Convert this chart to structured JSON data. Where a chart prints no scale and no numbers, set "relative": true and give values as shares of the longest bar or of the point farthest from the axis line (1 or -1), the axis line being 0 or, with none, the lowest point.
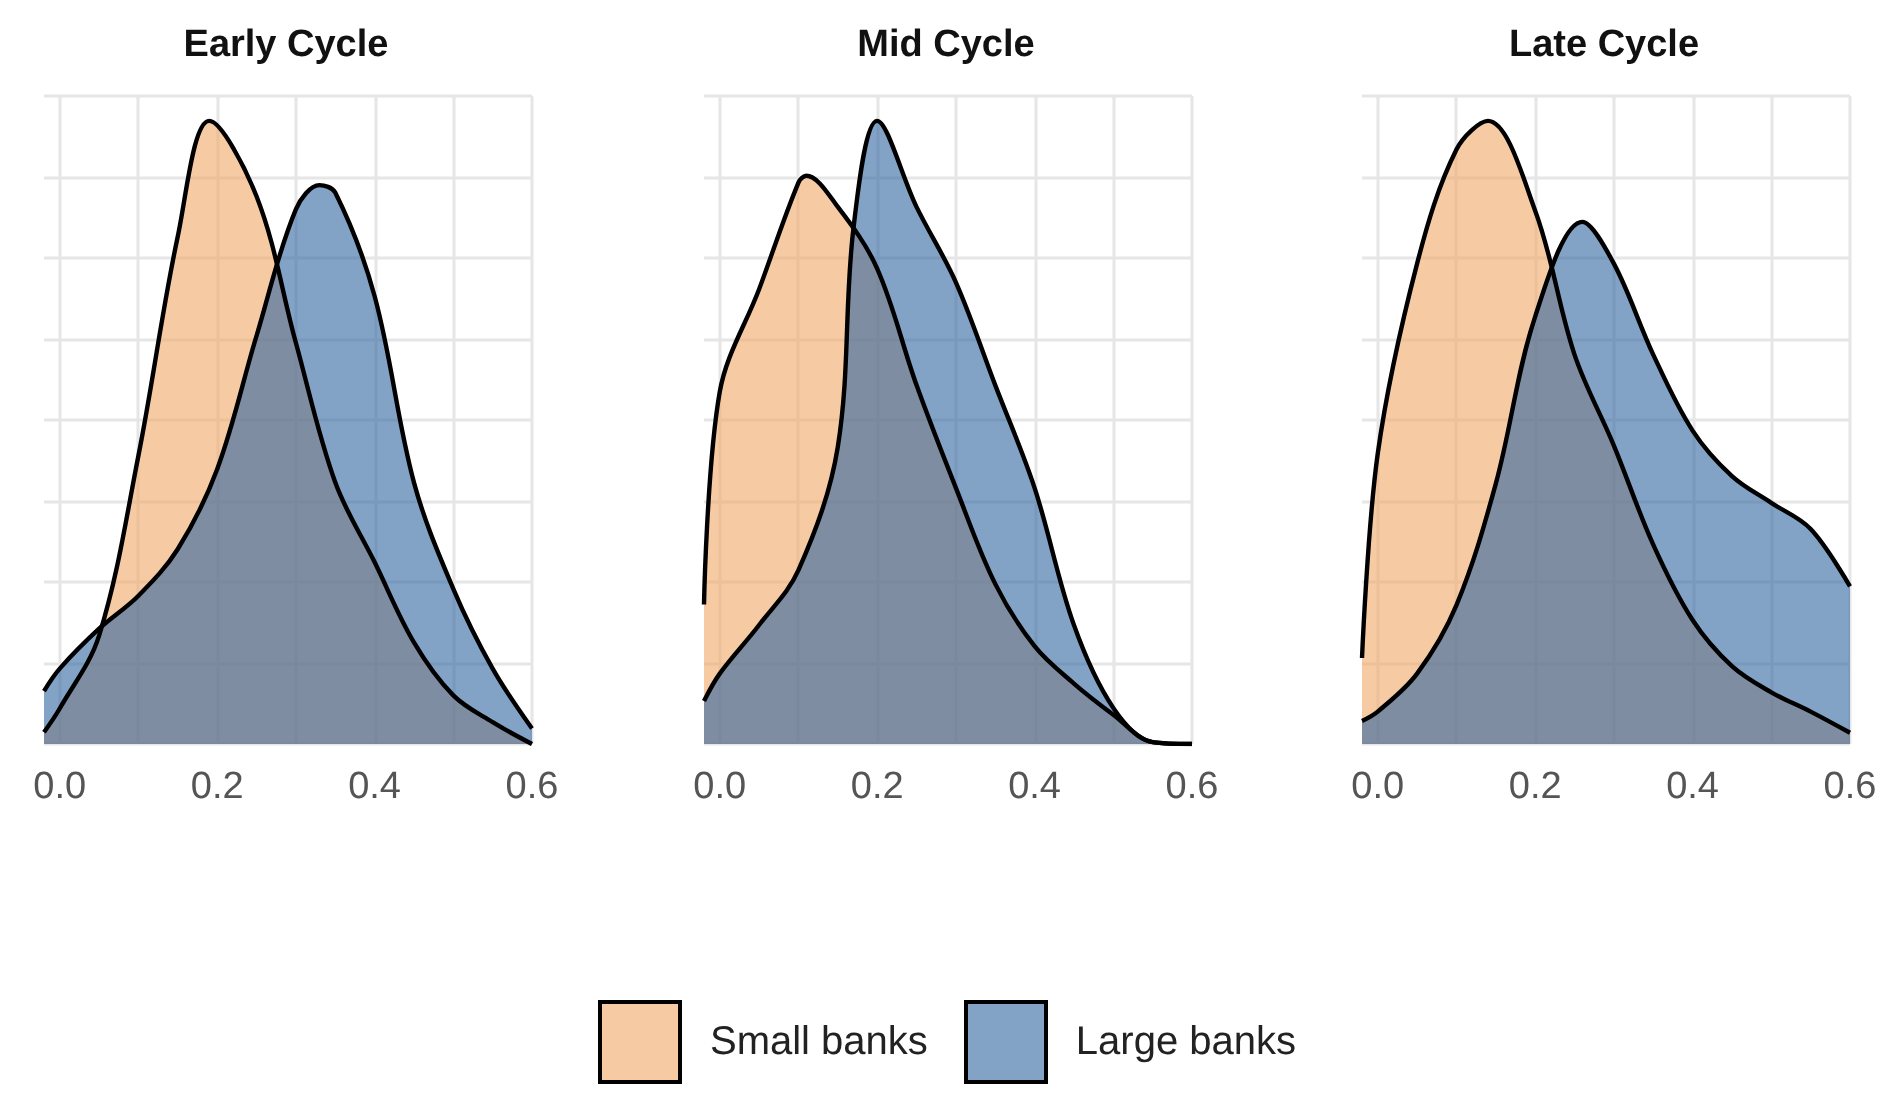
{
  "chart_data": [
    {
      "type": "area",
      "title": "Early Cycle",
      "relative": true,
      "grid": true,
      "legend": "bottom",
      "marker": "none",
      "xlim": [
        -0.02,
        0.6
      ],
      "xticks": [
        {
          "value": 0,
          "label": "0.0"
        },
        {
          "value": 0.1,
          "label": null
        },
        {
          "value": 0.2,
          "label": "0.2"
        },
        {
          "value": 0.3,
          "label": null
        },
        {
          "value": 0.4,
          "label": "0.4"
        },
        {
          "value": 0.5,
          "label": null
        },
        {
          "value": 0.6,
          "label": "0.6"
        }
      ],
      "series": [
        {
          "name": "Small banks",
          "color": "#f0a868",
          "x": [
            -0.02,
            0,
            0.05,
            0.1,
            0.15,
            0.19,
            0.25,
            0.3,
            0.35,
            0.4,
            0.45,
            0.5,
            0.55,
            0.6
          ],
          "values": [
            0.019,
            0.057,
            0.174,
            0.463,
            0.815,
            1.0,
            0.879,
            0.644,
            0.42,
            0.292,
            0.163,
            0.078,
            0.035,
            0.0
          ]
        },
        {
          "name": "Large banks",
          "color": "#2f64a0",
          "x": [
            -0.02,
            0,
            0.05,
            0.1,
            0.15,
            0.2,
            0.25,
            0.3,
            0.33,
            0.35,
            0.4,
            0.45,
            0.5,
            0.55,
            0.6
          ],
          "values": [
            0.085,
            0.121,
            0.185,
            0.238,
            0.313,
            0.441,
            0.655,
            0.858,
            0.897,
            0.885,
            0.719,
            0.42,
            0.249,
            0.121,
            0.025
          ]
        }
      ]
    },
    {
      "type": "area",
      "title": "Mid Cycle",
      "relative": true,
      "grid": true,
      "legend": "bottom",
      "marker": "none",
      "xlim": [
        -0.02,
        0.6
      ],
      "xticks": [
        {
          "value": 0,
          "label": "0.0"
        },
        {
          "value": 0.1,
          "label": null
        },
        {
          "value": 0.2,
          "label": "0.2"
        },
        {
          "value": 0.3,
          "label": null
        },
        {
          "value": 0.4,
          "label": "0.4"
        },
        {
          "value": 0.5,
          "label": null
        },
        {
          "value": 0.6,
          "label": "0.6"
        }
      ],
      "series": [
        {
          "name": "Small banks",
          "color": "#f0a868",
          "x": [
            -0.02,
            0,
            0.05,
            0.1,
            0.11,
            0.15,
            0.2,
            0.25,
            0.3,
            0.35,
            0.4,
            0.45,
            0.5,
            0.55,
            0.6
          ],
          "values": [
            0.224,
            0.565,
            0.73,
            0.901,
            0.912,
            0.862,
            0.763,
            0.576,
            0.411,
            0.257,
            0.157,
            0.097,
            0.047,
            0.003,
            0
          ]
        },
        {
          "name": "Large banks",
          "color": "#2f64a0",
          "x": [
            -0.02,
            0,
            0.05,
            0.1,
            0.15,
            0.17,
            0.2,
            0.25,
            0.3,
            0.35,
            0.4,
            0.45,
            0.5,
            0.55,
            0.6
          ],
          "values": [
            0.069,
            0.113,
            0.191,
            0.279,
            0.477,
            0.829,
            1.0,
            0.862,
            0.741,
            0.576,
            0.411,
            0.191,
            0.058,
            0.003,
            0
          ]
        }
      ]
    },
    {
      "type": "area",
      "title": "Late Cycle",
      "relative": true,
      "grid": true,
      "legend": "bottom",
      "marker": "none",
      "xlim": [
        -0.02,
        0.6
      ],
      "xticks": [
        {
          "value": 0,
          "label": "0.0"
        },
        {
          "value": 0.1,
          "label": null
        },
        {
          "value": 0.2,
          "label": "0.2"
        },
        {
          "value": 0.3,
          "label": null
        },
        {
          "value": 0.4,
          "label": "0.4"
        },
        {
          "value": 0.5,
          "label": null
        },
        {
          "value": 0.6,
          "label": "0.6"
        }
      ],
      "series": [
        {
          "name": "Small banks",
          "color": "#f0a868",
          "x": [
            -0.02,
            0,
            0.05,
            0.1,
            0.14,
            0.2,
            0.25,
            0.3,
            0.35,
            0.4,
            0.45,
            0.5,
            0.55,
            0.6
          ],
          "values": [
            0.138,
            0.466,
            0.771,
            0.954,
            1.0,
            0.856,
            0.625,
            0.479,
            0.32,
            0.199,
            0.125,
            0.083,
            0.052,
            0.018
          ]
        },
        {
          "name": "Large banks",
          "color": "#2f64a0",
          "x": [
            -0.02,
            0,
            0.05,
            0.1,
            0.15,
            0.2,
            0.26,
            0.3,
            0.35,
            0.4,
            0.45,
            0.5,
            0.55,
            0.6
          ],
          "values": [
            0.037,
            0.052,
            0.113,
            0.223,
            0.418,
            0.686,
            0.838,
            0.771,
            0.625,
            0.503,
            0.43,
            0.387,
            0.345,
            0.253
          ]
        }
      ]
    }
  ]
}
